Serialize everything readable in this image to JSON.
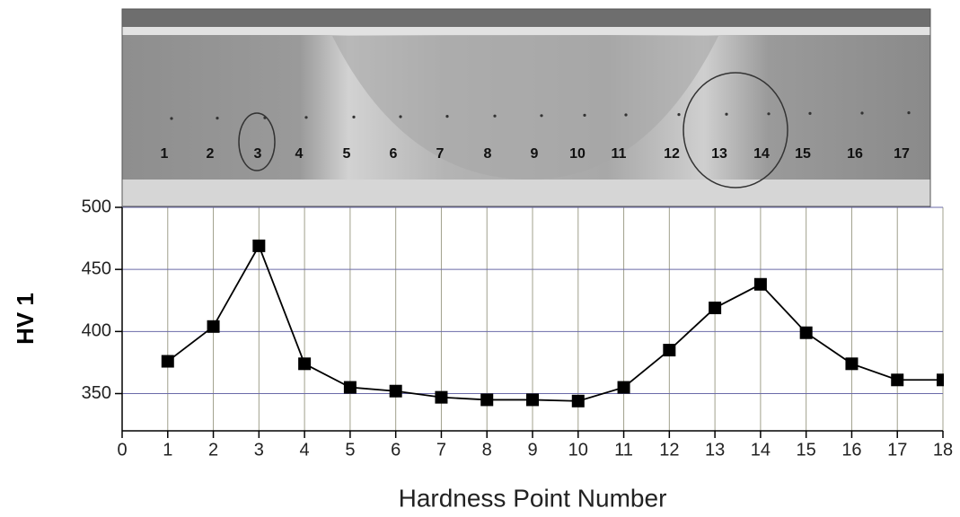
{
  "chart_data": {
    "type": "line",
    "x_label": "Hardness Point Number",
    "y_label": "HV 1",
    "x": [
      1,
      2,
      3,
      4,
      5,
      6,
      7,
      8,
      9,
      10,
      11,
      12,
      13,
      14,
      15,
      16,
      17,
      18
    ],
    "values": [
      376,
      404,
      469,
      374,
      355,
      352,
      347,
      345,
      345,
      344,
      355,
      385,
      419,
      438,
      399,
      374,
      361,
      361
    ],
    "color": "#000000",
    "xlim": [
      0,
      18
    ],
    "xticks": [
      0,
      1,
      2,
      3,
      4,
      5,
      6,
      7,
      8,
      9,
      10,
      11,
      12,
      13,
      14,
      15,
      16,
      17,
      18
    ],
    "ylim": [
      320,
      500
    ],
    "yticks": [
      350,
      400,
      450,
      500
    ],
    "grid": true,
    "photo_labels": [
      "1",
      "2",
      "3",
      "4",
      "5",
      "6",
      "7",
      "8",
      "9",
      "10",
      "11",
      "12",
      "13",
      "14",
      "15",
      "16",
      "17"
    ]
  }
}
